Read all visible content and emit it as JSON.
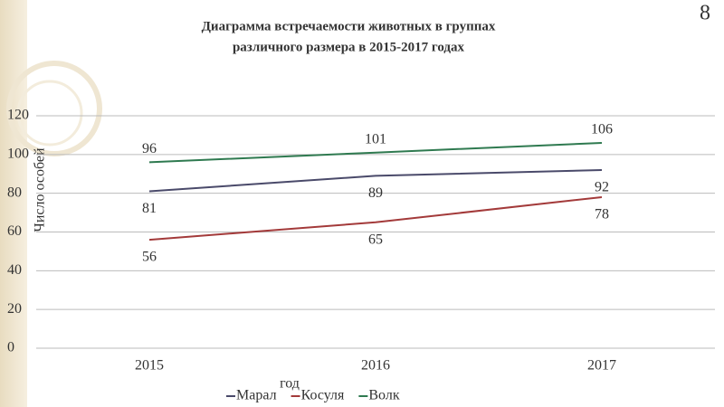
{
  "slide_number": "8",
  "chart_data": {
    "type": "line",
    "title": [
      "Диаграмма встречаемости животных в группах",
      "различного размера  в 2015-2017 годах"
    ],
    "y_label": "Число особей",
    "x_label": "год",
    "categories": [
      "2015",
      "2016",
      "2017"
    ],
    "series": [
      {
        "name": "Марал",
        "color": "#4a4a6a",
        "values": [
          81,
          89,
          92
        ]
      },
      {
        "name": "Косуля",
        "color": "#a33a3a",
        "values": [
          56,
          65,
          78
        ]
      },
      {
        "name": "Волк",
        "color": "#2f7a50",
        "values": [
          96,
          101,
          106
        ]
      }
    ],
    "ylim": [
      0,
      120
    ],
    "yticks": [
      0,
      20,
      40,
      60,
      80,
      100,
      120
    ],
    "grid": true
  }
}
